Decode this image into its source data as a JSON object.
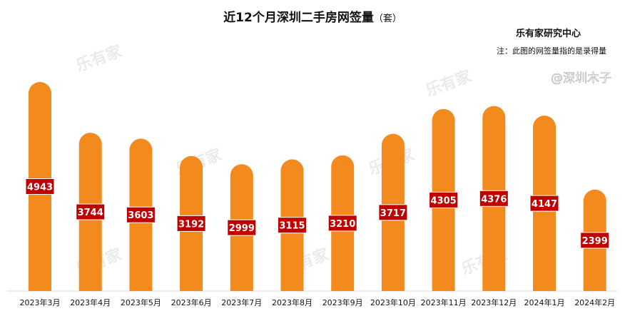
{
  "chart_data": {
    "type": "bar",
    "title": "近12个月深圳二手房网签量",
    "title_unit": "（套）",
    "source": "乐有家研究中心",
    "note": "注：此图的网签量指的是录得量",
    "categories": [
      "2023年3月",
      "2023年4月",
      "2023年5月",
      "2023年6月",
      "2023年7月",
      "2023年8月",
      "2023年9月",
      "2023年10月",
      "2023年11月",
      "2023年12月",
      "2024年1月",
      "2024年2月"
    ],
    "values": [
      4943,
      3744,
      3603,
      3192,
      2999,
      3115,
      3210,
      3717,
      4305,
      4376,
      4147,
      2399
    ],
    "ylim": [
      0,
      4943
    ],
    "grid": false,
    "bar_color": "#F28A1E",
    "label_color": "#C00000",
    "watermarks": [
      "乐有家",
      "@深圳木子"
    ]
  }
}
